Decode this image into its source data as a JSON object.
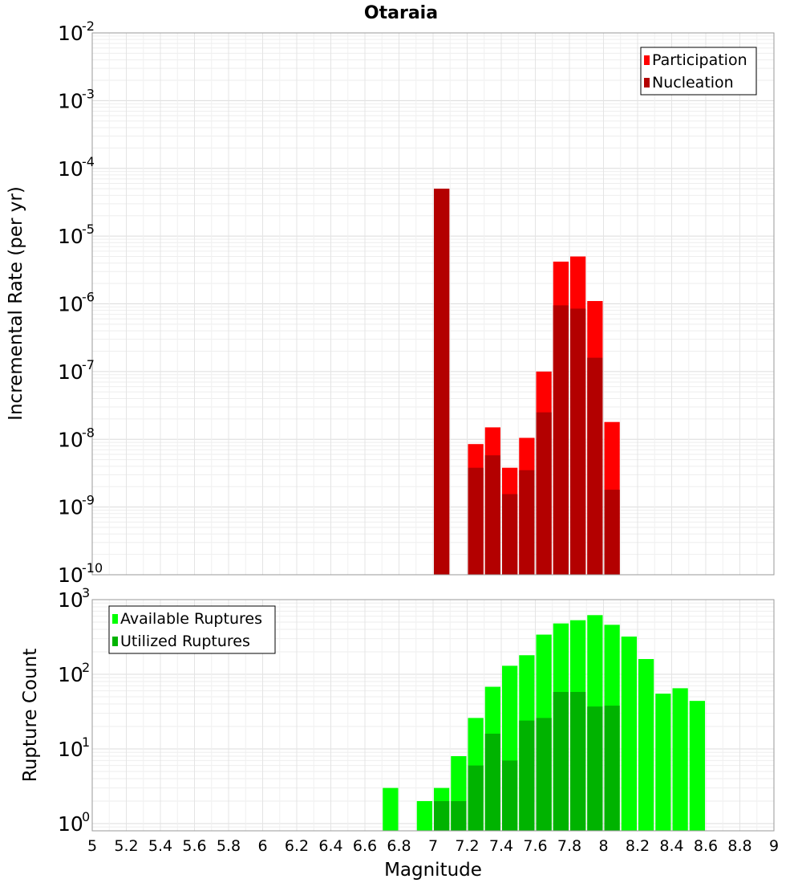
{
  "chart_data": [
    {
      "type": "bar",
      "title": "Otaraia",
      "xlabel": "",
      "ylabel": "Incremental Rate (per yr)",
      "y_scale": "log",
      "ylim": [
        1e-10,
        0.01
      ],
      "xlim": [
        5,
        9
      ],
      "y_tick_base": "10",
      "y_ticks": [
        {
          "value": 0.01,
          "exp": "-2"
        },
        {
          "value": 0.001,
          "exp": "-3"
        },
        {
          "value": 0.0001,
          "exp": "-4"
        },
        {
          "value": 1e-05,
          "exp": "-5"
        },
        {
          "value": 1e-06,
          "exp": "-6"
        },
        {
          "value": 1e-07,
          "exp": "-7"
        },
        {
          "value": 1e-08,
          "exp": "-8"
        },
        {
          "value": 1e-09,
          "exp": "-9"
        },
        {
          "value": 1e-10,
          "exp": "-10"
        }
      ],
      "legend_position": "top-right",
      "grid": true,
      "series": [
        {
          "name": "Participation",
          "color": "#ff0000",
          "x": [
            7.05,
            7.25,
            7.35,
            7.45,
            7.55,
            7.65,
            7.75,
            7.85,
            7.95,
            8.05
          ],
          "values": [
            5e-05,
            8.5e-09,
            1.5e-08,
            3.8e-09,
            1.05e-08,
            1e-07,
            4.2e-06,
            5e-06,
            1.1e-06,
            1.8e-08
          ]
        },
        {
          "name": "Nucleation",
          "color": "#b30000",
          "x": [
            7.05,
            7.25,
            7.35,
            7.45,
            7.55,
            7.65,
            7.75,
            7.85,
            7.95,
            8.05
          ],
          "values": [
            5e-05,
            3.8e-09,
            5.8e-09,
            1.55e-09,
            3.5e-09,
            2.5e-08,
            9.5e-07,
            8.5e-07,
            1.6e-07,
            1.8e-09
          ]
        }
      ]
    },
    {
      "type": "bar",
      "title": "",
      "xlabel": "Magnitude",
      "ylabel": "Rupture Count",
      "y_scale": "log",
      "ylim": [
        0.8,
        1000
      ],
      "xlim": [
        5,
        9
      ],
      "x_ticks": [
        "5",
        "5.2",
        "5.4",
        "5.6",
        "5.8",
        "6",
        "6.2",
        "6.4",
        "6.6",
        "6.8",
        "7",
        "7.2",
        "7.4",
        "7.6",
        "7.8",
        "8",
        "8.2",
        "8.4",
        "8.6",
        "8.8",
        "9"
      ],
      "y_tick_base": "10",
      "y_ticks": [
        {
          "value": 1000,
          "exp": "3"
        },
        {
          "value": 100,
          "exp": "2"
        },
        {
          "value": 10,
          "exp": "1"
        },
        {
          "value": 1,
          "exp": "0"
        }
      ],
      "legend_position": "top-left",
      "grid": true,
      "series": [
        {
          "name": "Available Ruptures",
          "color": "#00ff00",
          "x": [
            6.75,
            6.95,
            7.05,
            7.15,
            7.25,
            7.35,
            7.45,
            7.55,
            7.65,
            7.75,
            7.85,
            7.95,
            8.05,
            8.15,
            8.25,
            8.35,
            8.45,
            8.55
          ],
          "values": [
            3,
            2,
            3,
            8,
            26,
            68,
            130,
            180,
            340,
            480,
            530,
            620,
            460,
            320,
            160,
            55,
            65,
            44
          ]
        },
        {
          "name": "Utilized Ruptures",
          "color": "#00b300",
          "x": [
            7.05,
            7.15,
            7.25,
            7.35,
            7.45,
            7.55,
            7.65,
            7.75,
            7.85,
            7.95,
            8.05
          ],
          "values": [
            2,
            2,
            6,
            16,
            7,
            24,
            26,
            58,
            58,
            37,
            38
          ]
        }
      ]
    }
  ]
}
